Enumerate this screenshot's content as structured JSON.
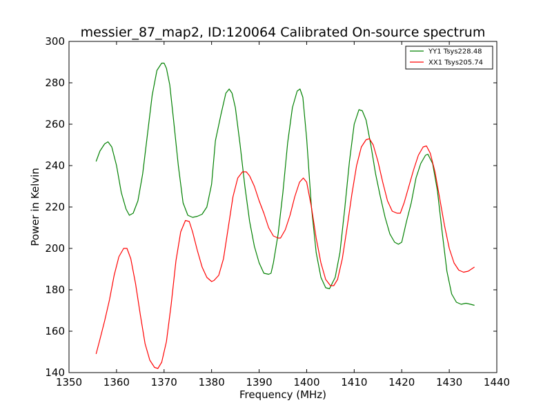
{
  "chart_data": {
    "type": "line",
    "title": "messier_87_map2, ID:120064 Calibrated On-source spectrum",
    "xlabel": "Frequency (MHz)",
    "ylabel": "Power in Kelvin",
    "xlim": [
      1350,
      1440
    ],
    "ylim": [
      140,
      300
    ],
    "xticks": [
      "1350",
      "1360",
      "1370",
      "1380",
      "1390",
      "1400",
      "1410",
      "1420",
      "1430",
      "1440"
    ],
    "yticks": [
      "140",
      "160",
      "180",
      "200",
      "220",
      "240",
      "260",
      "280",
      "300"
    ],
    "grid": false,
    "legend_position": "top-right",
    "series": [
      {
        "name": "YY1 Tsys228.48",
        "color": "#008000",
        "x": [
          1355.7,
          1356.5,
          1357.5,
          1358.2,
          1359.0,
          1360.0,
          1361.0,
          1362.0,
          1362.7,
          1363.5,
          1364.5,
          1365.5,
          1366.5,
          1367.5,
          1368.5,
          1369.5,
          1370.0,
          1370.5,
          1371.2,
          1372.0,
          1373.0,
          1374.0,
          1375.0,
          1376.0,
          1377.0,
          1378.0,
          1379.0,
          1380.0,
          1380.8,
          1382.0,
          1383.0,
          1383.7,
          1384.3,
          1385.0,
          1386.0,
          1387.0,
          1388.0,
          1389.0,
          1390.0,
          1391.0,
          1392.0,
          1392.5,
          1393.0,
          1394.0,
          1395.0,
          1396.0,
          1397.0,
          1398.0,
          1398.6,
          1399.2,
          1400.0,
          1401.0,
          1402.0,
          1403.0,
          1404.0,
          1404.8,
          1406.0,
          1407.0,
          1408.0,
          1409.0,
          1410.0,
          1411.0,
          1411.7,
          1412.5,
          1413.5,
          1414.5,
          1415.5,
          1416.5,
          1417.5,
          1418.5,
          1419.3,
          1420.0,
          1421.0,
          1422.0,
          1423.0,
          1424.0,
          1425.0,
          1425.5,
          1426.5,
          1427.5,
          1428.5,
          1429.5,
          1430.5,
          1431.5,
          1432.5,
          1433.5,
          1434.5,
          1435.3
        ],
        "values": [
          242,
          247,
          250.5,
          251.5,
          249,
          240,
          227,
          219,
          216,
          217,
          223,
          236,
          255,
          274,
          286,
          289.5,
          289.5,
          287,
          279,
          262,
          240,
          222,
          216,
          215,
          215.5,
          216.5,
          220,
          231,
          252,
          265,
          275,
          277,
          275,
          268,
          250,
          230,
          213,
          201,
          193,
          188,
          187.5,
          188,
          193,
          207,
          227,
          251,
          268,
          276,
          277,
          273,
          253,
          220,
          198,
          186,
          181,
          180.5,
          186,
          198,
          219,
          242,
          260,
          267,
          266.5,
          262,
          250,
          236,
          225,
          215,
          207,
          203,
          202,
          203,
          213,
          222,
          234,
          241,
          245,
          245.5,
          241,
          228,
          208,
          189,
          178,
          174,
          173,
          173.5,
          173,
          172.5
        ]
      },
      {
        "name": "XX1 Tsys205.74",
        "color": "#ff0000",
        "x": [
          1355.7,
          1356.5,
          1357.5,
          1358.5,
          1359.5,
          1360.5,
          1361.5,
          1362.2,
          1363.0,
          1364.0,
          1365.0,
          1366.0,
          1367.0,
          1368.0,
          1368.7,
          1369.5,
          1370.5,
          1371.5,
          1372.5,
          1373.5,
          1374.5,
          1375.3,
          1376.0,
          1377.0,
          1378.0,
          1379.0,
          1380.0,
          1380.5,
          1381.5,
          1382.5,
          1383.5,
          1384.5,
          1385.5,
          1386.5,
          1387.3,
          1388.0,
          1389.0,
          1390.0,
          1391.0,
          1392.0,
          1393.0,
          1394.0,
          1394.5,
          1395.5,
          1396.5,
          1397.5,
          1398.5,
          1399.3,
          1400.0,
          1401.0,
          1402.0,
          1403.0,
          1404.0,
          1405.0,
          1405.7,
          1406.5,
          1407.5,
          1408.5,
          1409.5,
          1410.5,
          1411.5,
          1412.5,
          1413.2,
          1414.0,
          1415.0,
          1416.0,
          1417.0,
          1418.0,
          1419.0,
          1419.7,
          1420.5,
          1421.5,
          1422.5,
          1423.5,
          1424.5,
          1425.2,
          1426.0,
          1427.0,
          1428.0,
          1429.0,
          1430.0,
          1431.0,
          1432.0,
          1433.0,
          1434.0,
          1435.3
        ],
        "values": [
          149,
          156,
          165,
          175,
          187,
          196,
          200,
          200,
          195,
          183,
          168,
          154,
          146,
          142.5,
          142,
          145,
          155,
          173,
          194,
          208,
          213.5,
          213,
          208,
          199,
          191,
          186,
          184,
          184.5,
          187,
          195,
          210,
          225,
          234,
          237,
          237,
          235,
          230,
          223,
          217,
          210,
          206,
          205,
          205,
          209,
          216,
          225,
          232,
          234,
          232,
          220,
          205,
          193,
          185,
          182,
          182,
          185,
          195,
          210,
          226,
          240,
          249,
          252.5,
          253,
          250,
          242,
          232,
          223,
          218,
          217,
          217,
          222,
          230,
          238,
          245,
          249,
          249.5,
          246,
          237,
          224,
          211,
          200,
          193,
          189.5,
          188.5,
          189,
          191
        ]
      }
    ]
  }
}
